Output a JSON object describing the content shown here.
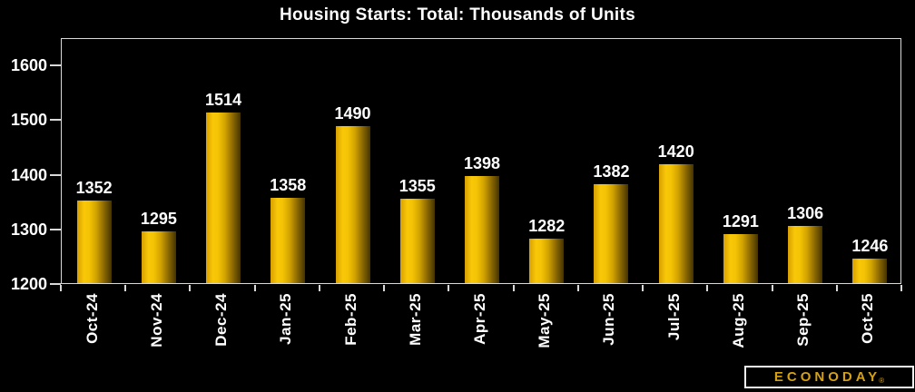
{
  "chart_data": {
    "type": "bar",
    "title": "Housing Starts: Total: Thousands of Units",
    "categories": [
      "Oct-24",
      "Nov-24",
      "Dec-24",
      "Jan-25",
      "Feb-25",
      "Mar-25",
      "Apr-25",
      "May-25",
      "Jun-25",
      "Jul-25",
      "Aug-25",
      "Sep-25",
      "Oct-25"
    ],
    "values": [
      1352,
      1295,
      1514,
      1358,
      1490,
      1355,
      1398,
      1282,
      1382,
      1420,
      1291,
      1306,
      1246
    ],
    "xlabel": "",
    "ylabel": "",
    "ylim": [
      1200,
      1650
    ],
    "yticks": [
      1200,
      1300,
      1400,
      1500,
      1600
    ],
    "grid": false,
    "legend": "none",
    "data_labels": true
  },
  "branding": {
    "logo_text": "ECONODAY",
    "registered_mark": "®"
  },
  "colors": {
    "background": "#000000",
    "bar_gold": "#F5C400",
    "bar_shadow": "#443300",
    "text": "#FFFFFF",
    "axis": "#D9D9D9",
    "logo_gold": "#D4A017"
  }
}
